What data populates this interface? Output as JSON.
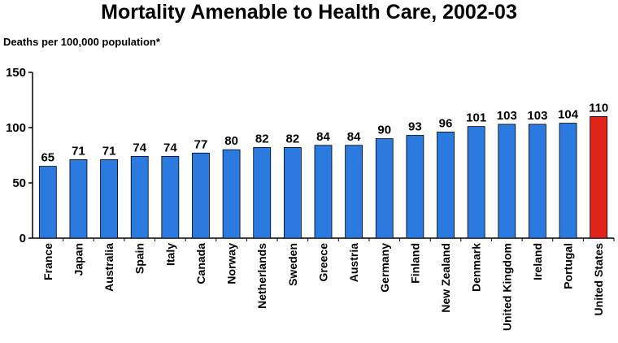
{
  "chart_data": {
    "type": "bar",
    "title": "Mortality Amenable to Health Care, 2002-03",
    "ylabel": "Deaths per 100,000 population*",
    "xlabel": "",
    "ylim": [
      0,
      150
    ],
    "yticks": [
      0,
      50,
      100,
      150
    ],
    "grid": false,
    "categories": [
      "France",
      "Japan",
      "Australia",
      "Spain",
      "Italy",
      "Canada",
      "Norway",
      "Netherlands",
      "Sweden",
      "Greece",
      "Austria",
      "Germany",
      "Finland",
      "New Zealand",
      "Denmark",
      "United Kingdom",
      "Ireland",
      "Portugal",
      "United States"
    ],
    "values": [
      65,
      71,
      71,
      74,
      74,
      77,
      80,
      82,
      82,
      84,
      84,
      90,
      93,
      96,
      101,
      103,
      103,
      104,
      110
    ],
    "bar_color": "#2b7ae0",
    "highlight_color": "#e0241c",
    "highlight_category": "United States"
  }
}
